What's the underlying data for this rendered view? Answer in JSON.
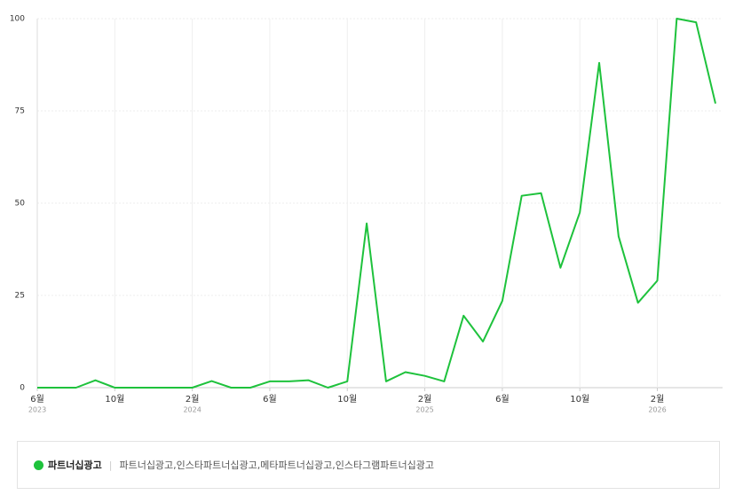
{
  "chart_data": {
    "type": "line",
    "categories": [
      "6월",
      null,
      null,
      null,
      "10월",
      null,
      null,
      null,
      "2월",
      null,
      null,
      null,
      "6월",
      null,
      null,
      null,
      "10월",
      null,
      null,
      null,
      "2월",
      null,
      null,
      null,
      "6월",
      null,
      null,
      null,
      "10월",
      null,
      null,
      null,
      "2월",
      null,
      null,
      null
    ],
    "year_labels": [
      "2023",
      null,
      null,
      null,
      null,
      null,
      null,
      null,
      "2024",
      null,
      null,
      null,
      null,
      null,
      null,
      null,
      null,
      null,
      null,
      null,
      "2025",
      null,
      null,
      null,
      null,
      null,
      null,
      null,
      null,
      null,
      null,
      null,
      "2026",
      null,
      null,
      null
    ],
    "series": [
      {
        "name": "파트너십광고",
        "color": "#1ec23c",
        "keywords": "파트너십광고,인스타파트너십광고,메타파트너십광고,인스타그램파트너십광고",
        "values": [
          0,
          0,
          0,
          2,
          0,
          0,
          0,
          0,
          0,
          1.8,
          0,
          0,
          1.7,
          1.7,
          2,
          0,
          1.7,
          44.5,
          1.7,
          4.2,
          3.2,
          1.7,
          19.5,
          12.5,
          23.5,
          52,
          52.7,
          32.5,
          47.5,
          88,
          41,
          23,
          29,
          100,
          99,
          77
        ]
      }
    ],
    "ylim": [
      0,
      100
    ],
    "yticks": [
      0,
      25,
      50,
      75,
      100
    ],
    "grid": true
  }
}
